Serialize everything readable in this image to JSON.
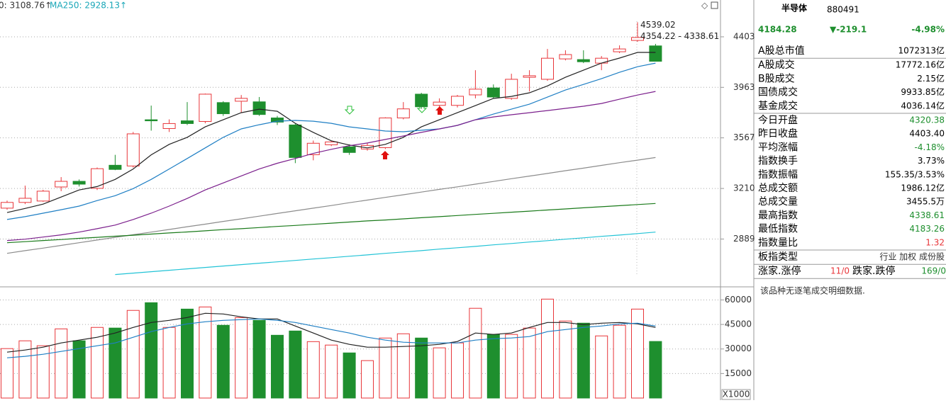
{
  "chart_data": [
    {
      "type": "candlestick",
      "legend": [
        {
          "text": "0: 3108.76↑",
          "color": "#333333"
        },
        {
          "text": "MA250: 2928.13↑",
          "color": "#1aa7b8"
        }
      ],
      "annotations": [
        "4539.02",
        "4354.22 - 4338.61"
      ],
      "log": true,
      "ylim": [
        2615,
        4754
      ],
      "yticks": [
        2889,
        3210,
        3567,
        3963,
        4403
      ],
      "grid": true,
      "up_color": "#e8363a",
      "down_color": "#1e8f2e",
      "open": [
        3081,
        3118,
        3127,
        3220,
        3258,
        3211,
        3369,
        3364,
        3704,
        3637,
        3696,
        3691,
        3839,
        3850,
        3845,
        3718,
        3664,
        3444,
        3516,
        3501,
        3485,
        3495,
        3718,
        3907,
        3817,
        3817,
        3901,
        3958,
        3873,
        4047,
        4030,
        4205,
        4199,
        4168,
        4268,
        4370,
        4320.38
      ],
      "close": [
        3118,
        3145,
        3192,
        3258,
        3239,
        3345,
        3340,
        3597,
        3696,
        3675,
        3675,
        3907,
        3751,
        3873,
        3745,
        3686,
        3424,
        3527,
        3537,
        3460,
        3511,
        3718,
        3789,
        3806,
        3843,
        3890,
        3948,
        3884,
        4030,
        4060,
        4211,
        4243,
        4180,
        4211,
        4293,
        4397,
        4184.28
      ],
      "high": [
        3130,
        3229,
        3201,
        3287,
        3271,
        3353,
        3443,
        3611,
        3815,
        3707,
        3843,
        3912,
        3850,
        3900,
        3884,
        3734,
        3675,
        3547,
        3547,
        3519,
        3527,
        3723,
        3843,
        3918,
        3873,
        3901,
        4107,
        3987,
        4077,
        4107,
        4293,
        4281,
        4281,
        4230,
        4325,
        4539.02,
        4338.61
      ],
      "low": [
        3071,
        3107,
        3122,
        3192,
        3223,
        3200,
        3335,
        3353,
        3621,
        3611,
        3664,
        3677,
        3734,
        3759,
        3734,
        3664,
        3384,
        3404,
        3506,
        3443,
        3473,
        3485,
        3707,
        3789,
        3806,
        3800,
        3873,
        3873,
        3861,
        3929,
        4017,
        4192,
        4168,
        4107,
        4256,
        4358,
        4183.26
      ],
      "series": [
        {
          "color": "#222222",
          "values": [
            3053,
            3079,
            3107,
            3153,
            3200,
            3223,
            3271,
            3343,
            3443,
            3519,
            3571,
            3650,
            3704,
            3759,
            3787,
            3770,
            3677,
            3608,
            3545,
            3514,
            3493,
            3519,
            3571,
            3650,
            3704,
            3759,
            3815,
            3872,
            3889,
            3918,
            3975,
            4047,
            4107,
            4168,
            4212,
            4262,
            4262
          ]
        },
        {
          "color": "#1f7fc4",
          "values": [
            3009,
            3027,
            3049,
            3071,
            3094,
            3130,
            3162,
            3209,
            3271,
            3343,
            3417,
            3493,
            3571,
            3634,
            3666,
            3693,
            3699,
            3693,
            3677,
            3650,
            3634,
            3618,
            3613,
            3624,
            3634,
            3661,
            3704,
            3748,
            3787,
            3826,
            3883,
            3941,
            3987,
            4035,
            4089,
            4137,
            4168
          ]
        },
        {
          "color": "#7b1f8c",
          "values": [
            2880,
            2888,
            2901,
            2914,
            2931,
            2952,
            2974,
            3009,
            3049,
            3094,
            3144,
            3200,
            3247,
            3295,
            3343,
            3383,
            3417,
            3453,
            3483,
            3509,
            3529,
            3555,
            3581,
            3608,
            3634,
            3661,
            3704,
            3726,
            3743,
            3759,
            3776,
            3793,
            3810,
            3832,
            3866,
            3900,
            3929
          ]
        },
        {
          "color": "#8c8c8c",
          "values": [
            2804,
            2820,
            2835,
            2851,
            2867,
            2883,
            2899,
            2915,
            2931,
            2947,
            2964,
            2980,
            2997,
            3013,
            3030,
            3047,
            3064,
            3081,
            3098,
            3116,
            3133,
            3151,
            3168,
            3186,
            3204,
            3221,
            3239,
            3257,
            3276,
            3294,
            3312,
            3331,
            3349,
            3368,
            3387,
            3405,
            3424
          ]
        },
        {
          "color": "#1a7a1a",
          "values": [
            2867,
            2873,
            2880,
            2886,
            2893,
            2899,
            2906,
            2912,
            2919,
            2926,
            2932,
            2939,
            2946,
            2952,
            2959,
            2966,
            2972,
            2979,
            2986,
            2993,
            3000,
            3006,
            3013,
            3020,
            3027,
            3034,
            3041,
            3048,
            3055,
            3062,
            3069,
            3076,
            3083,
            3090,
            3097,
            3104,
            3111
          ]
        },
        {
          "color": "#22c3d6",
          "values": [
            null,
            null,
            null,
            null,
            null,
            null,
            2683,
            2691,
            2699,
            2707,
            2715,
            2723,
            2731,
            2739,
            2747,
            2755,
            2763,
            2771,
            2779,
            2787,
            2795,
            2804,
            2812,
            2820,
            2829,
            2837,
            2845,
            2854,
            2862,
            2871,
            2879,
            2888,
            2896,
            2905,
            2913,
            2922,
            2931
          ]
        }
      ]
    },
    {
      "type": "bar",
      "unit_label": "X1000",
      "ylim": [
        0,
        68000
      ],
      "yticks": [
        15000,
        30000,
        45000,
        60000
      ],
      "grid": true,
      "values": [
        30240,
        35000,
        32000,
        42300,
        35000,
        43200,
        42800,
        53600,
        58300,
        43200,
        54400,
        55700,
        44500,
        49200,
        47500,
        38400,
        41000,
        34500,
        32400,
        27600,
        22900,
        36700,
        39300,
        36700,
        30700,
        33700,
        54900,
        38900,
        38900,
        42800,
        60500,
        47100,
        45800,
        38000,
        44500,
        54400,
        34600
      ],
      "series": [
        {
          "color": "#222222",
          "values": [
            28080,
            29380,
            31100,
            33700,
            35420,
            37150,
            39740,
            43200,
            46220,
            47520,
            49250,
            51840,
            51410,
            49680,
            48380,
            48380,
            44060,
            39740,
            35420,
            32830,
            31100,
            31100,
            31540,
            31970,
            32830,
            34560,
            39740,
            38880,
            39740,
            43200,
            46220,
            46220,
            44930,
            45790,
            46220,
            45360,
            43200
          ]
        },
        {
          "color": "#1f7fc4",
          "values": [
            24620,
            25490,
            26780,
            28510,
            30240,
            31970,
            33700,
            37150,
            40610,
            43200,
            45360,
            46660,
            47520,
            47950,
            48380,
            47520,
            46220,
            44060,
            41900,
            39740,
            37150,
            35420,
            34130,
            33700,
            33700,
            33700,
            35420,
            36290,
            36720,
            37580,
            40610,
            41900,
            43200,
            44060,
            45360,
            45790,
            44060
          ]
        }
      ]
    }
  ],
  "panel": {
    "name": "半导体",
    "code": "880491",
    "price": "4184.28",
    "change": "▼-219.1",
    "pct": "-4.98%",
    "quote_color": "#1e8f2e",
    "groups": [
      [
        {
          "label": "A股总市值",
          "value": "1072313亿",
          "color": "#000000"
        }
      ],
      [
        {
          "label": "A股成交",
          "value": "17772.16亿",
          "color": "#000000"
        },
        {
          "label": "B股成交",
          "value": "2.15亿",
          "color": "#000000"
        },
        {
          "label": "国债成交",
          "value": "9933.85亿",
          "color": "#000000"
        },
        {
          "label": "基金成交",
          "value": "4036.14亿",
          "color": "#000000"
        }
      ],
      [
        {
          "label": "今日开盘",
          "value": "4320.38",
          "color": "#1e8f2e"
        },
        {
          "label": "昨日收盘",
          "value": "4403.40",
          "color": "#000000"
        },
        {
          "label": "平均涨幅",
          "value": "-4.18%",
          "color": "#1e8f2e"
        },
        {
          "label": "指数换手",
          "value": "3.73%",
          "color": "#000000"
        },
        {
          "label": "指数振幅",
          "value": "155.35/3.53%",
          "color": "#000000"
        },
        {
          "label": "总成交额",
          "value": "1986.12亿",
          "color": "#000000"
        },
        {
          "label": "总成交量",
          "value": "3455.5万",
          "color": "#000000"
        },
        {
          "label": "最高指数",
          "value": "4338.61",
          "color": "#1e8f2e"
        },
        {
          "label": "最低指数",
          "value": "4183.26",
          "color": "#1e8f2e"
        },
        {
          "label": "指数量比",
          "value": "1.32",
          "color": "#e8363a"
        }
      ],
      [
        {
          "label": "板指类型",
          "value": "行业 加权 成份股",
          "color": "#333333"
        }
      ]
    ],
    "breadth": {
      "up_label": "涨家.涨停",
      "up": "11/0",
      "down_label": "跌家.跌停",
      "down": "169/0",
      "up_color": "#e8363a",
      "down_color": "#1e8f2e"
    },
    "note": "该品种无逐笔成交明细数据."
  }
}
